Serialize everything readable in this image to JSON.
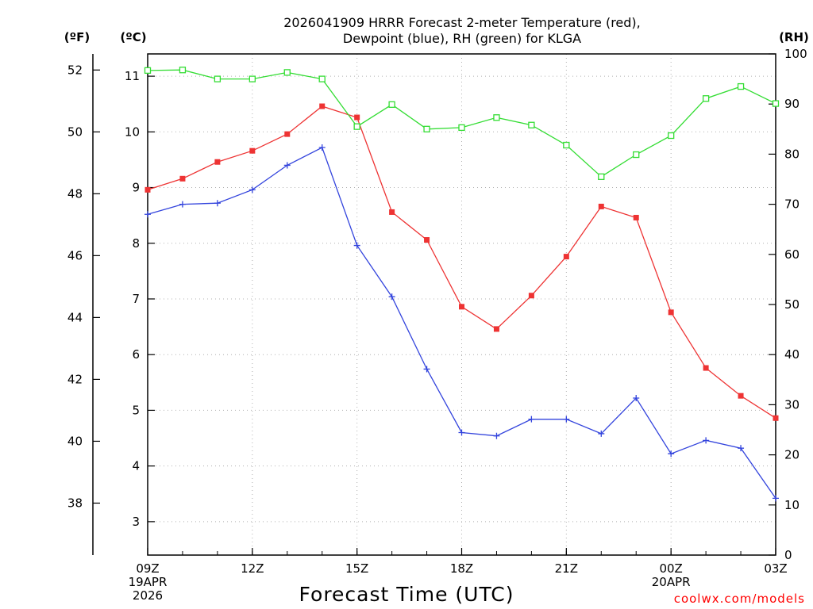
{
  "chart_data": {
    "type": "line",
    "title_lines": [
      "2026041909 HRRR Forecast 2-meter Temperature (red),",
      "Dewpoint (blue), RH (green) for KLGA"
    ],
    "xlabel": "Forecast Time (UTC)",
    "credit": "coolwx.com/models",
    "units": {
      "fahrenheit": "(ºF)",
      "celsius": "(ºC)",
      "rh": "(RH)"
    },
    "x_hours": [
      0,
      1,
      2,
      3,
      4,
      5,
      6,
      7,
      8,
      9,
      10,
      11,
      12,
      13,
      14,
      15,
      16,
      17,
      18
    ],
    "x_ticks": [
      {
        "hour": 0,
        "lines": [
          "09Z",
          "19APR",
          "2026"
        ]
      },
      {
        "hour": 3,
        "lines": [
          "12Z"
        ]
      },
      {
        "hour": 6,
        "lines": [
          "15Z"
        ]
      },
      {
        "hour": 9,
        "lines": [
          "18Z"
        ]
      },
      {
        "hour": 12,
        "lines": [
          "21Z"
        ]
      },
      {
        "hour": 15,
        "lines": [
          "00Z",
          "20APR"
        ]
      },
      {
        "hour": 18,
        "lines": [
          "03Z"
        ]
      }
    ],
    "celsius_axis": {
      "range": [
        2.4,
        11.4
      ],
      "ticks": [
        "3",
        "4",
        "5",
        "6",
        "7",
        "8",
        "9",
        "10",
        "11"
      ]
    },
    "fahrenheit_axis": {
      "ticks": [
        "38",
        "40",
        "42",
        "44",
        "46",
        "48",
        "50",
        "52"
      ]
    },
    "rh_axis": {
      "range": [
        0,
        100
      ],
      "ticks": [
        "0",
        "10",
        "20",
        "30",
        "40",
        "50",
        "60",
        "70",
        "80",
        "90",
        "100"
      ]
    },
    "series": [
      {
        "name": "Temperature",
        "color": "#ee3333",
        "marker": "filled-square",
        "axis": "celsius",
        "values": [
          8.96,
          9.16,
          9.46,
          9.66,
          9.96,
          10.46,
          10.26,
          8.56,
          8.06,
          6.86,
          6.46,
          7.06,
          7.76,
          8.66,
          8.46,
          6.76,
          5.76,
          5.26,
          4.86
        ]
      },
      {
        "name": "Dewpoint",
        "color": "#3344dd",
        "marker": "plus",
        "axis": "celsius",
        "values": [
          8.52,
          8.7,
          8.72,
          8.96,
          9.4,
          9.72,
          7.96,
          7.04,
          5.74,
          4.6,
          4.54,
          4.84,
          4.84,
          4.58,
          5.22,
          4.22,
          4.46,
          4.32,
          3.42
        ]
      },
      {
        "name": "RH",
        "color": "#33dd33",
        "marker": "open-square",
        "axis": "rh",
        "values": [
          96.7,
          96.8,
          95.0,
          95.0,
          96.3,
          95.0,
          85.5,
          89.9,
          85.0,
          85.3,
          87.3,
          85.8,
          81.8,
          75.5,
          79.9,
          83.7,
          91.1,
          93.5,
          90.1
        ]
      }
    ]
  }
}
